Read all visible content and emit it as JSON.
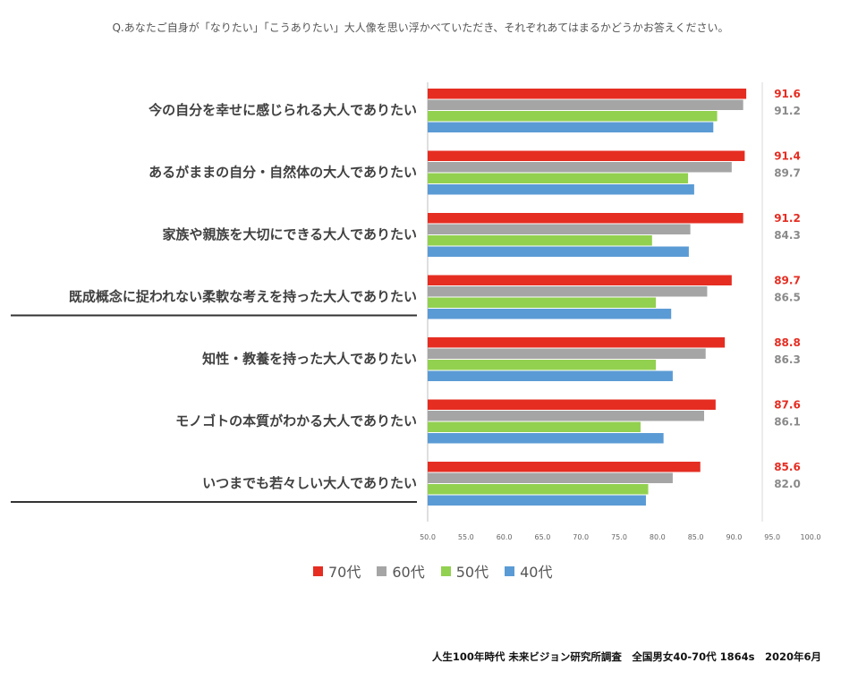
{
  "question": "Q.あなたご自身が「なりたい」「こうありたい」大人像を思い浮かべていただき、それぞれあてはまるかどうかお答えください。",
  "source": "人生100年時代 未来ビジョン研究所調査　全国男女40-70代 1864s　2020年6月",
  "colors": {
    "s70": "#e52d22",
    "s60": "#a5a5a5",
    "s50": "#92d050",
    "s40": "#5b9bd5"
  },
  "chart_data": {
    "type": "bar",
    "orientation": "horizontal",
    "xlim": [
      50,
      100
    ],
    "ticks": [
      "50.0",
      "55.0",
      "60.0",
      "65.0",
      "70.0",
      "75.0",
      "80.0",
      "85.0",
      "90.0",
      "95.0",
      "100.0"
    ],
    "categories": [
      "今の自分を幸せに感じられる大人でありたい",
      "あるがままの自分・自然体の大人でありたい",
      "家族や親族を大切にできる大人でありたい",
      "既成概念に捉われない柔軟な考えを持った大人でありたい",
      "知性・教養を持った大人でありたい",
      "モノゴトの本質がわかる大人でありたい",
      "いつまでも若々しい大人でありたい"
    ],
    "underlined": [
      false,
      false,
      false,
      true,
      false,
      false,
      true
    ],
    "series": [
      {
        "name": "70代",
        "values": [
          91.6,
          91.4,
          91.2,
          89.7,
          88.8,
          87.6,
          85.6
        ]
      },
      {
        "name": "60代",
        "values": [
          91.2,
          89.7,
          84.3,
          86.5,
          86.3,
          86.1,
          82.0
        ]
      },
      {
        "name": "50代",
        "values": [
          87.8,
          84.0,
          79.3,
          79.8,
          79.8,
          77.8,
          78.8
        ]
      },
      {
        "name": "40代",
        "values": [
          87.3,
          84.8,
          84.1,
          81.8,
          82.0,
          80.8,
          78.5
        ]
      }
    ],
    "value_labels_70": [
      "91.6",
      "91.4",
      "91.2",
      "89.7",
      "88.8",
      "87.6",
      "85.6"
    ],
    "value_labels_60": [
      "91.2",
      "89.7",
      "84.3",
      "86.5",
      "86.3",
      "86.1",
      "82.0"
    ]
  },
  "legend": [
    {
      "label": "70代",
      "color": "#e52d22"
    },
    {
      "label": "60代",
      "color": "#a5a5a5"
    },
    {
      "label": "50代",
      "color": "#92d050"
    },
    {
      "label": "40代",
      "color": "#5b9bd5"
    }
  ]
}
